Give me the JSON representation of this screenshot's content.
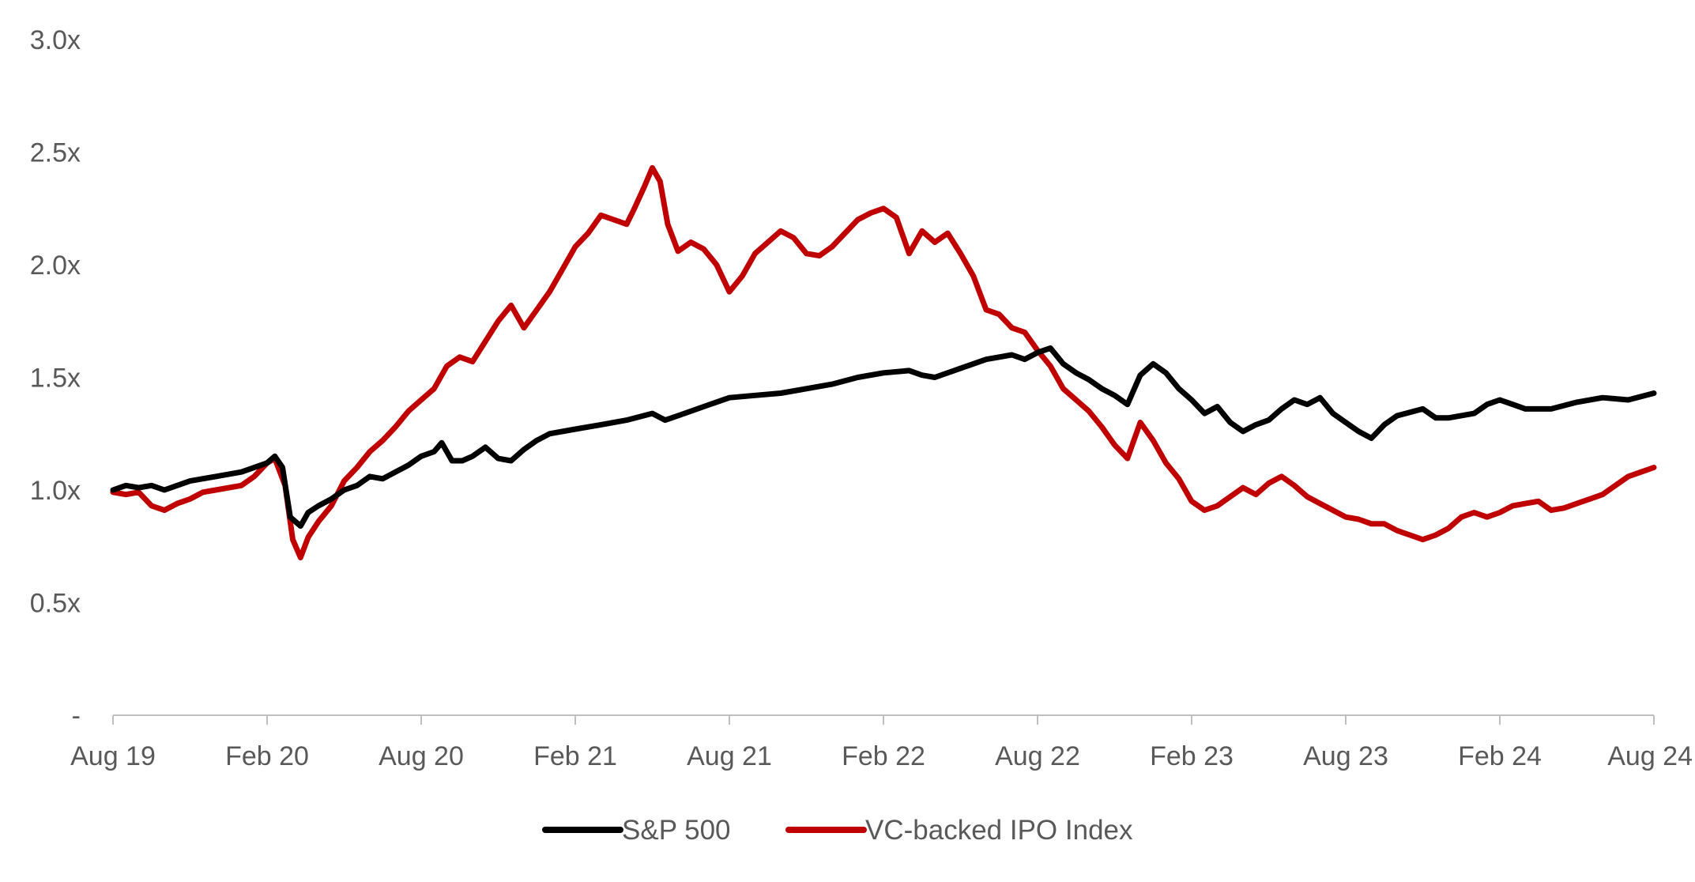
{
  "chart_data": {
    "type": "line",
    "x_tick_labels": [
      "Aug 19",
      "Feb 20",
      "Aug 20",
      "Feb 21",
      "Aug 21",
      "Feb 22",
      "Aug 22",
      "Feb 23",
      "Aug 23",
      "Feb 24",
      "Aug 24"
    ],
    "y_tick_labels": [
      "-",
      "0.5x",
      "1.0x",
      "1.5x",
      "2.0x",
      "2.5x",
      "3.0x"
    ],
    "y_ticks": [
      0,
      0.5,
      1.0,
      1.5,
      2.0,
      2.5,
      3.0
    ],
    "ylim": [
      0,
      3.0
    ],
    "x_range_months": [
      0,
      60
    ],
    "grid": false,
    "legend_position": "bottom-center",
    "series": [
      {
        "name": "S&P 500",
        "color": "#000000",
        "points": [
          [
            0,
            1.0
          ],
          [
            0.5,
            1.02
          ],
          [
            1,
            1.01
          ],
          [
            1.5,
            1.02
          ],
          [
            2,
            1.0
          ],
          [
            3,
            1.04
          ],
          [
            4,
            1.06
          ],
          [
            5,
            1.08
          ],
          [
            6,
            1.12
          ],
          [
            6.3,
            1.15
          ],
          [
            6.6,
            1.1
          ],
          [
            6.9,
            0.88
          ],
          [
            7.3,
            0.84
          ],
          [
            7.6,
            0.9
          ],
          [
            8,
            0.93
          ],
          [
            8.5,
            0.96
          ],
          [
            9,
            1.0
          ],
          [
            9.5,
            1.02
          ],
          [
            10,
            1.06
          ],
          [
            10.5,
            1.05
          ],
          [
            11,
            1.08
          ],
          [
            11.5,
            1.11
          ],
          [
            12,
            1.15
          ],
          [
            12.5,
            1.17
          ],
          [
            12.8,
            1.21
          ],
          [
            13.2,
            1.13
          ],
          [
            13.6,
            1.13
          ],
          [
            14,
            1.15
          ],
          [
            14.5,
            1.19
          ],
          [
            15,
            1.14
          ],
          [
            15.5,
            1.13
          ],
          [
            16,
            1.18
          ],
          [
            16.5,
            1.22
          ],
          [
            17,
            1.25
          ],
          [
            18,
            1.27
          ],
          [
            19,
            1.29
          ],
          [
            20,
            1.31
          ],
          [
            21,
            1.34
          ],
          [
            21.5,
            1.31
          ],
          [
            22,
            1.33
          ],
          [
            23,
            1.37
          ],
          [
            24,
            1.41
          ],
          [
            25,
            1.42
          ],
          [
            26,
            1.43
          ],
          [
            27,
            1.45
          ],
          [
            28,
            1.47
          ],
          [
            29,
            1.5
          ],
          [
            30,
            1.52
          ],
          [
            31,
            1.53
          ],
          [
            31.5,
            1.51
          ],
          [
            32,
            1.5
          ],
          [
            33,
            1.54
          ],
          [
            34,
            1.58
          ],
          [
            35,
            1.6
          ],
          [
            35.5,
            1.58
          ],
          [
            36,
            1.61
          ],
          [
            36.5,
            1.63
          ],
          [
            37,
            1.56
          ],
          [
            37.5,
            1.52
          ],
          [
            38,
            1.49
          ],
          [
            38.5,
            1.45
          ],
          [
            39,
            1.42
          ],
          [
            39.5,
            1.38
          ],
          [
            40,
            1.51
          ],
          [
            40.5,
            1.56
          ],
          [
            41,
            1.52
          ],
          [
            41.5,
            1.45
          ],
          [
            42,
            1.4
          ],
          [
            42.5,
            1.34
          ],
          [
            43,
            1.37
          ],
          [
            43.5,
            1.3
          ],
          [
            44,
            1.26
          ],
          [
            44.5,
            1.29
          ],
          [
            45,
            1.31
          ],
          [
            45.5,
            1.36
          ],
          [
            46,
            1.4
          ],
          [
            46.5,
            1.38
          ],
          [
            47,
            1.41
          ],
          [
            47.5,
            1.34
          ],
          [
            48,
            1.3
          ],
          [
            48.5,
            1.26
          ],
          [
            49,
            1.23
          ],
          [
            49.5,
            1.29
          ],
          [
            50,
            1.33
          ],
          [
            51,
            1.36
          ],
          [
            51.5,
            1.32
          ],
          [
            52,
            1.32
          ],
          [
            53,
            1.34
          ],
          [
            53.5,
            1.38
          ],
          [
            54,
            1.4
          ],
          [
            54.5,
            1.38
          ],
          [
            55,
            1.36
          ],
          [
            56,
            1.36
          ],
          [
            57,
            1.39
          ],
          [
            58,
            1.41
          ],
          [
            59,
            1.4
          ],
          [
            60,
            1.43
          ]
        ]
      },
      {
        "name": "VC-backed IPO Index",
        "color": "#c00000",
        "points": [
          [
            0,
            0.99
          ],
          [
            0.5,
            0.98
          ],
          [
            1,
            0.99
          ],
          [
            1.5,
            0.93
          ],
          [
            2,
            0.91
          ],
          [
            2.5,
            0.94
          ],
          [
            3,
            0.96
          ],
          [
            3.5,
            0.99
          ],
          [
            4,
            1.0
          ],
          [
            5,
            1.02
          ],
          [
            5.5,
            1.06
          ],
          [
            6,
            1.12
          ],
          [
            6.3,
            1.14
          ],
          [
            6.7,
            1.02
          ],
          [
            7,
            0.78
          ],
          [
            7.3,
            0.7
          ],
          [
            7.6,
            0.79
          ],
          [
            8,
            0.86
          ],
          [
            8.5,
            0.93
          ],
          [
            9,
            1.04
          ],
          [
            9.5,
            1.1
          ],
          [
            10,
            1.17
          ],
          [
            10.5,
            1.22
          ],
          [
            11,
            1.28
          ],
          [
            11.5,
            1.35
          ],
          [
            12,
            1.4
          ],
          [
            12.5,
            1.45
          ],
          [
            13,
            1.55
          ],
          [
            13.5,
            1.59
          ],
          [
            14,
            1.57
          ],
          [
            14.5,
            1.66
          ],
          [
            15,
            1.75
          ],
          [
            15.5,
            1.82
          ],
          [
            16,
            1.72
          ],
          [
            16.5,
            1.8
          ],
          [
            17,
            1.88
          ],
          [
            17.5,
            1.98
          ],
          [
            18,
            2.08
          ],
          [
            18.5,
            2.14
          ],
          [
            19,
            2.22
          ],
          [
            19.5,
            2.2
          ],
          [
            20,
            2.18
          ],
          [
            20.3,
            2.25
          ],
          [
            20.7,
            2.35
          ],
          [
            21,
            2.43
          ],
          [
            21.3,
            2.37
          ],
          [
            21.6,
            2.18
          ],
          [
            22,
            2.06
          ],
          [
            22.5,
            2.1
          ],
          [
            23,
            2.07
          ],
          [
            23.5,
            2.0
          ],
          [
            24,
            1.88
          ],
          [
            24.5,
            1.95
          ],
          [
            25,
            2.05
          ],
          [
            25.5,
            2.1
          ],
          [
            26,
            2.15
          ],
          [
            26.5,
            2.12
          ],
          [
            27,
            2.05
          ],
          [
            27.5,
            2.04
          ],
          [
            28,
            2.08
          ],
          [
            28.5,
            2.14
          ],
          [
            29,
            2.2
          ],
          [
            29.5,
            2.23
          ],
          [
            30,
            2.25
          ],
          [
            30.5,
            2.21
          ],
          [
            31,
            2.05
          ],
          [
            31.5,
            2.15
          ],
          [
            32,
            2.1
          ],
          [
            32.5,
            2.14
          ],
          [
            33,
            2.05
          ],
          [
            33.5,
            1.95
          ],
          [
            34,
            1.8
          ],
          [
            34.5,
            1.78
          ],
          [
            35,
            1.72
          ],
          [
            35.5,
            1.7
          ],
          [
            36,
            1.62
          ],
          [
            36.5,
            1.55
          ],
          [
            37,
            1.45
          ],
          [
            37.5,
            1.4
          ],
          [
            38,
            1.35
          ],
          [
            38.5,
            1.28
          ],
          [
            39,
            1.2
          ],
          [
            39.5,
            1.14
          ],
          [
            40,
            1.3
          ],
          [
            40.5,
            1.22
          ],
          [
            41,
            1.12
          ],
          [
            41.5,
            1.05
          ],
          [
            42,
            0.95
          ],
          [
            42.5,
            0.91
          ],
          [
            43,
            0.93
          ],
          [
            43.5,
            0.97
          ],
          [
            44,
            1.01
          ],
          [
            44.5,
            0.98
          ],
          [
            45,
            1.03
          ],
          [
            45.5,
            1.06
          ],
          [
            46,
            1.02
          ],
          [
            46.5,
            0.97
          ],
          [
            47,
            0.94
          ],
          [
            47.5,
            0.91
          ],
          [
            48,
            0.88
          ],
          [
            48.5,
            0.87
          ],
          [
            49,
            0.85
          ],
          [
            49.5,
            0.85
          ],
          [
            50,
            0.82
          ],
          [
            50.5,
            0.8
          ],
          [
            51,
            0.78
          ],
          [
            51.5,
            0.8
          ],
          [
            52,
            0.83
          ],
          [
            52.5,
            0.88
          ],
          [
            53,
            0.9
          ],
          [
            53.5,
            0.88
          ],
          [
            54,
            0.9
          ],
          [
            54.5,
            0.93
          ],
          [
            55,
            0.94
          ],
          [
            55.5,
            0.95
          ],
          [
            56,
            0.91
          ],
          [
            56.5,
            0.92
          ],
          [
            57,
            0.94
          ],
          [
            57.5,
            0.96
          ],
          [
            58,
            0.98
          ],
          [
            58.5,
            1.02
          ],
          [
            59,
            1.06
          ],
          [
            59.5,
            1.08
          ],
          [
            60,
            1.1
          ]
        ]
      }
    ]
  }
}
